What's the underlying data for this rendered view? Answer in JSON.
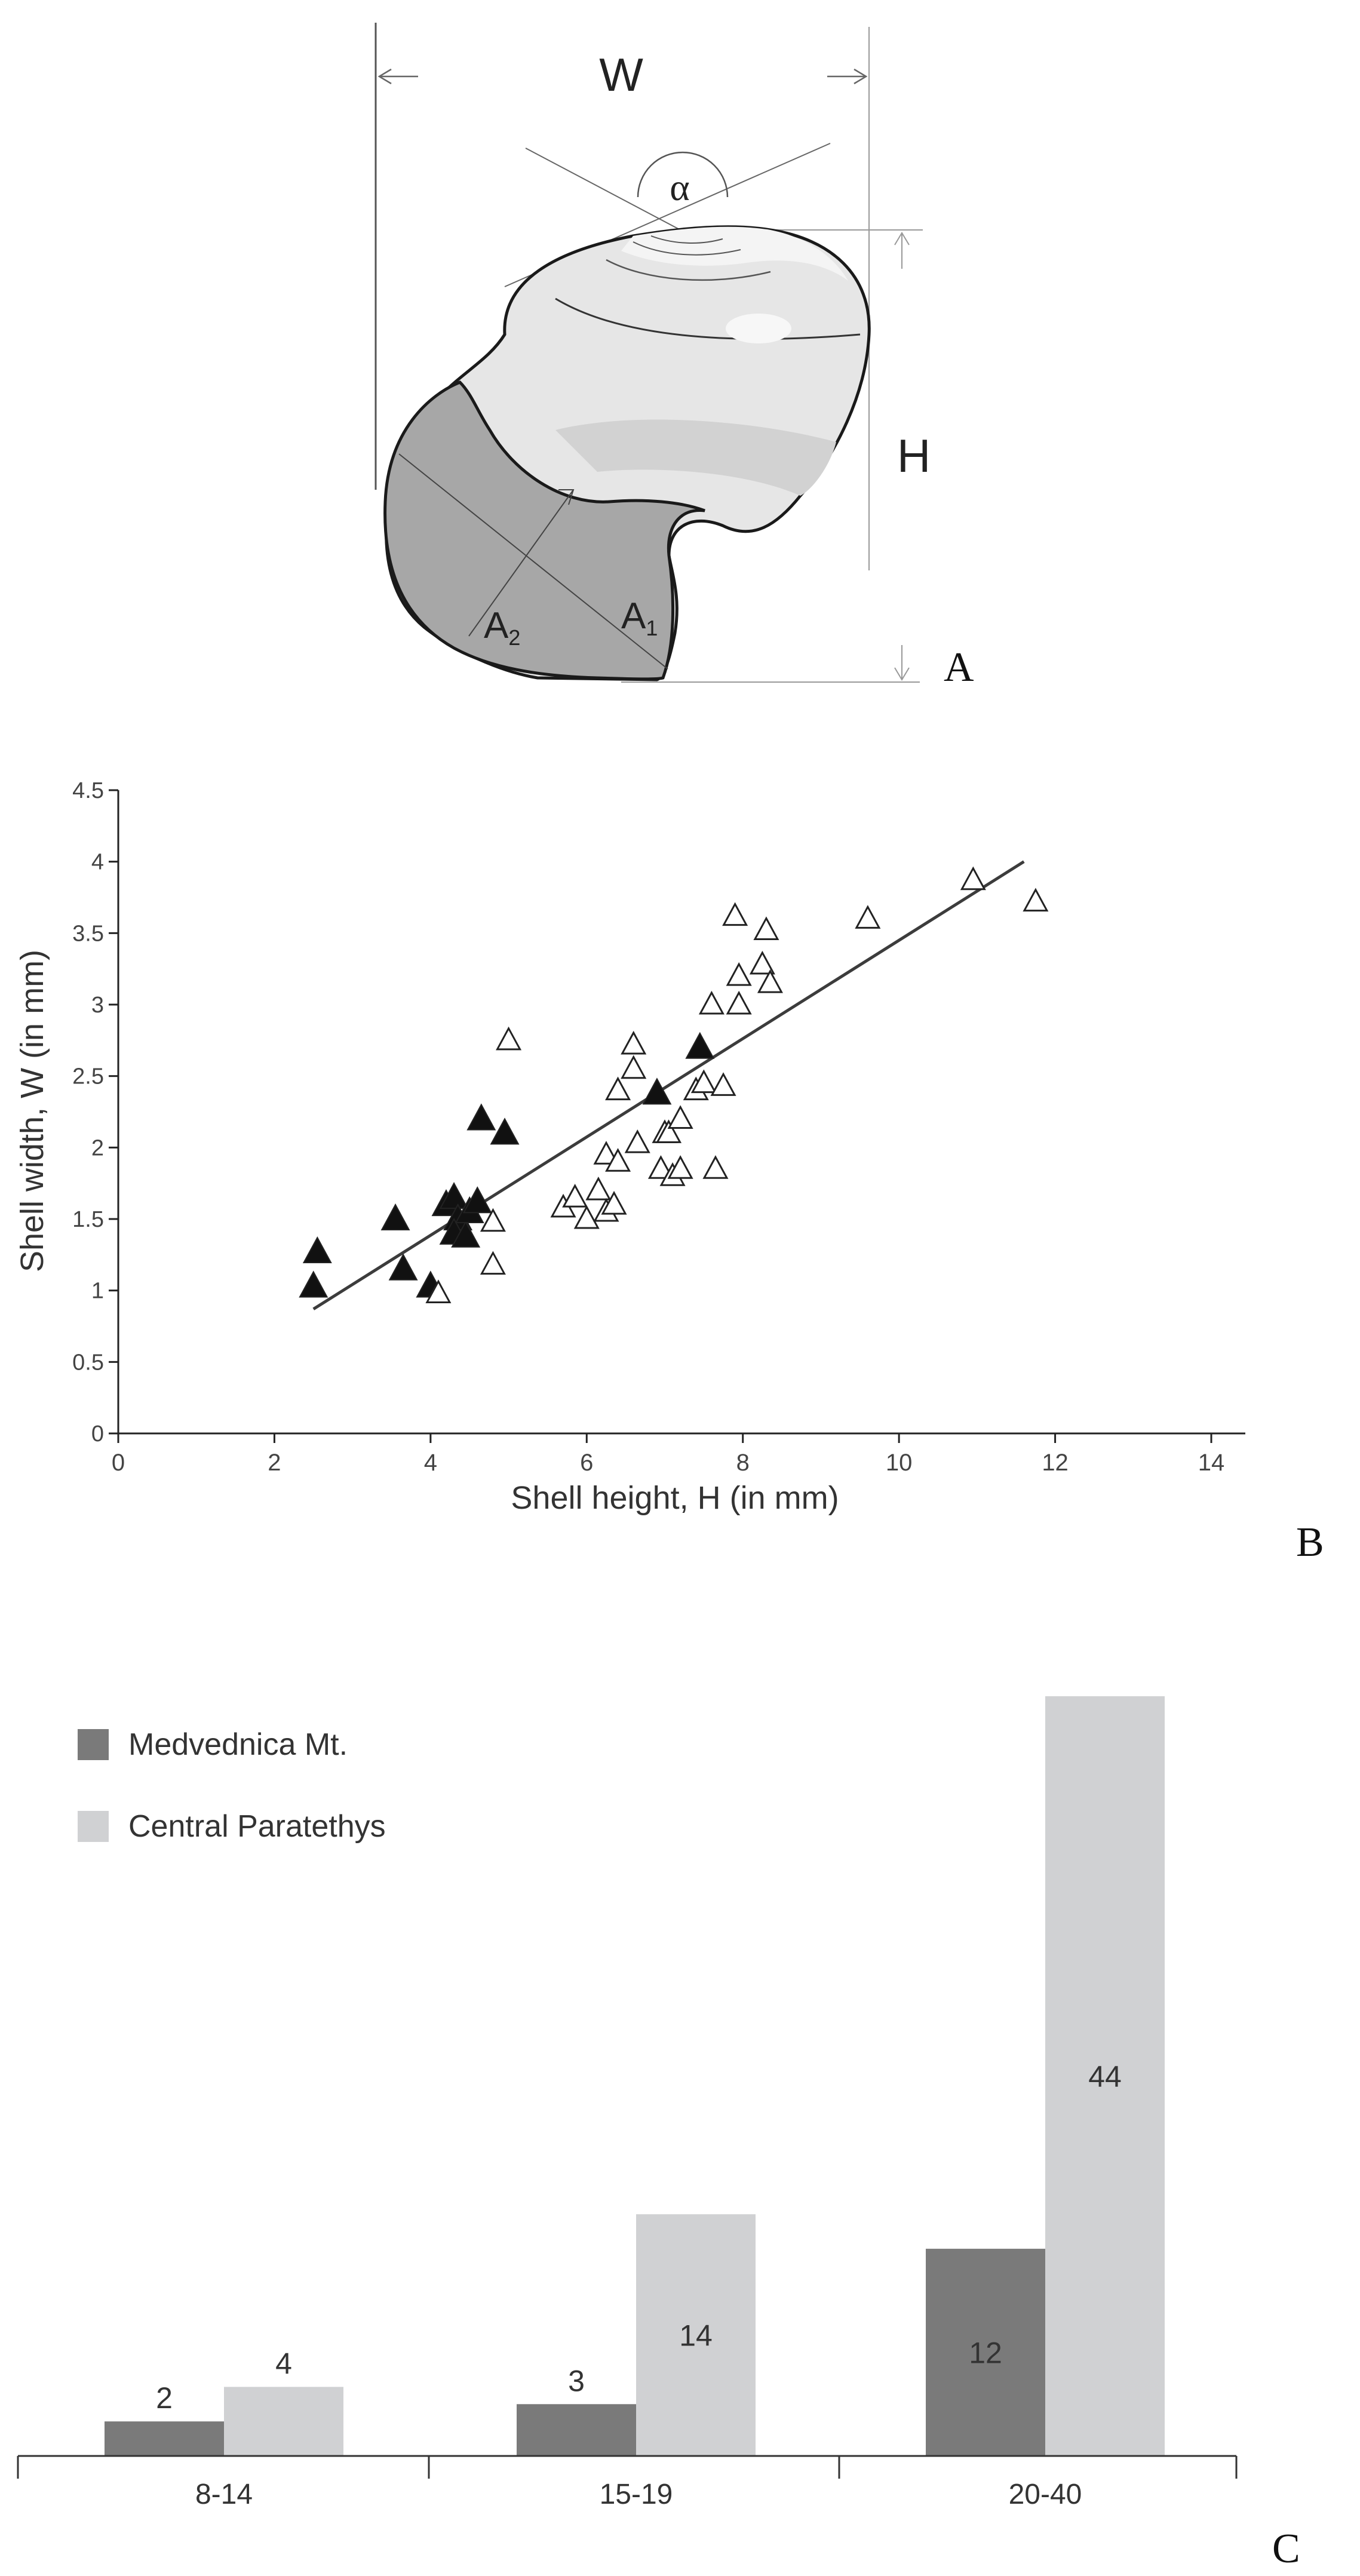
{
  "panels": {
    "a": {
      "letter": "A"
    },
    "b": {
      "letter": "B"
    },
    "c": {
      "letter": "C"
    }
  },
  "diagram": {
    "width_label": "W",
    "height_label": "H",
    "angle_label": "α",
    "aperture_1_base": "A",
    "aperture_1_sub": "1",
    "aperture_2_base": "A",
    "aperture_2_sub": "2"
  },
  "chart_data": [
    {
      "type": "scatter",
      "title": "",
      "xlabel": "Shell height, H (in mm)",
      "ylabel": "Shell width, W (in mm)",
      "xlim": [
        0,
        14
      ],
      "ylim": [
        0,
        4.5
      ],
      "xticks": [
        0,
        2,
        4,
        6,
        8,
        10,
        12,
        14
      ],
      "yticks": [
        0,
        0.5,
        1,
        1.5,
        2,
        2.5,
        3,
        3.5,
        4,
        4.5
      ],
      "xtick_labels": [
        "0",
        "2",
        "4",
        "6",
        "8",
        "10",
        "12",
        "14"
      ],
      "ytick_labels": [
        "0",
        "0.5",
        "1",
        "1.5",
        "2",
        "2.5",
        "3",
        "3.5",
        "4",
        "4.5"
      ],
      "series": [
        {
          "name": "filled triangles",
          "marker": "filled-triangle",
          "points": [
            [
              2.55,
              1.27
            ],
            [
              2.5,
              1.03
            ],
            [
              3.55,
              1.5
            ],
            [
              3.65,
              1.15
            ],
            [
              4.0,
              1.03
            ],
            [
              4.2,
              1.6
            ],
            [
              4.3,
              1.65
            ],
            [
              4.35,
              1.5
            ],
            [
              4.3,
              1.4
            ],
            [
              4.45,
              1.38
            ],
            [
              4.5,
              1.55
            ],
            [
              4.6,
              1.62
            ],
            [
              4.65,
              2.2
            ],
            [
              4.95,
              2.1
            ],
            [
              6.9,
              2.38
            ],
            [
              7.45,
              2.7
            ]
          ]
        },
        {
          "name": "open triangles",
          "marker": "open-triangle",
          "points": [
            [
              4.1,
              0.98
            ],
            [
              4.8,
              1.18
            ],
            [
              4.8,
              1.48
            ],
            [
              5.0,
              2.75
            ],
            [
              5.7,
              1.58
            ],
            [
              5.85,
              1.65
            ],
            [
              6.0,
              1.5
            ],
            [
              6.15,
              1.7
            ],
            [
              6.25,
              1.95
            ],
            [
              6.25,
              1.55
            ],
            [
              6.35,
              1.6
            ],
            [
              6.4,
              1.9
            ],
            [
              6.4,
              2.4
            ],
            [
              6.6,
              2.55
            ],
            [
              6.6,
              2.72
            ],
            [
              6.65,
              2.03
            ],
            [
              6.95,
              1.85
            ],
            [
              7.0,
              2.1
            ],
            [
              7.05,
              2.1
            ],
            [
              7.1,
              1.8
            ],
            [
              7.2,
              2.2
            ],
            [
              7.2,
              1.85
            ],
            [
              7.4,
              2.4
            ],
            [
              7.5,
              2.45
            ],
            [
              7.6,
              3.0
            ],
            [
              7.65,
              1.85
            ],
            [
              7.75,
              2.43
            ],
            [
              7.9,
              3.62
            ],
            [
              7.95,
              3.0
            ],
            [
              7.95,
              3.2
            ],
            [
              8.25,
              3.28
            ],
            [
              8.3,
              3.52
            ],
            [
              8.35,
              3.15
            ],
            [
              9.6,
              3.6
            ],
            [
              10.95,
              3.87
            ],
            [
              11.75,
              3.72
            ]
          ]
        }
      ],
      "trend_line": {
        "x": [
          2.5,
          11.6
        ],
        "y": [
          0.87,
          4.0
        ]
      }
    },
    {
      "type": "bar",
      "title": "",
      "categories": [
        "8-14",
        "15-19",
        "20-40"
      ],
      "series": [
        {
          "name": "Medvednica Mt.",
          "color": "#7a7a7a",
          "values": [
            2,
            3,
            12
          ]
        },
        {
          "name": "Central Paratethys",
          "color": "#d0d1d3",
          "values": [
            4,
            14,
            44
          ]
        }
      ],
      "data_labels": [
        [
          "2",
          "3",
          "12"
        ],
        [
          "4",
          "14",
          "44"
        ]
      ],
      "ylim": [
        0,
        44
      ],
      "legend_position": "top-left"
    }
  ]
}
